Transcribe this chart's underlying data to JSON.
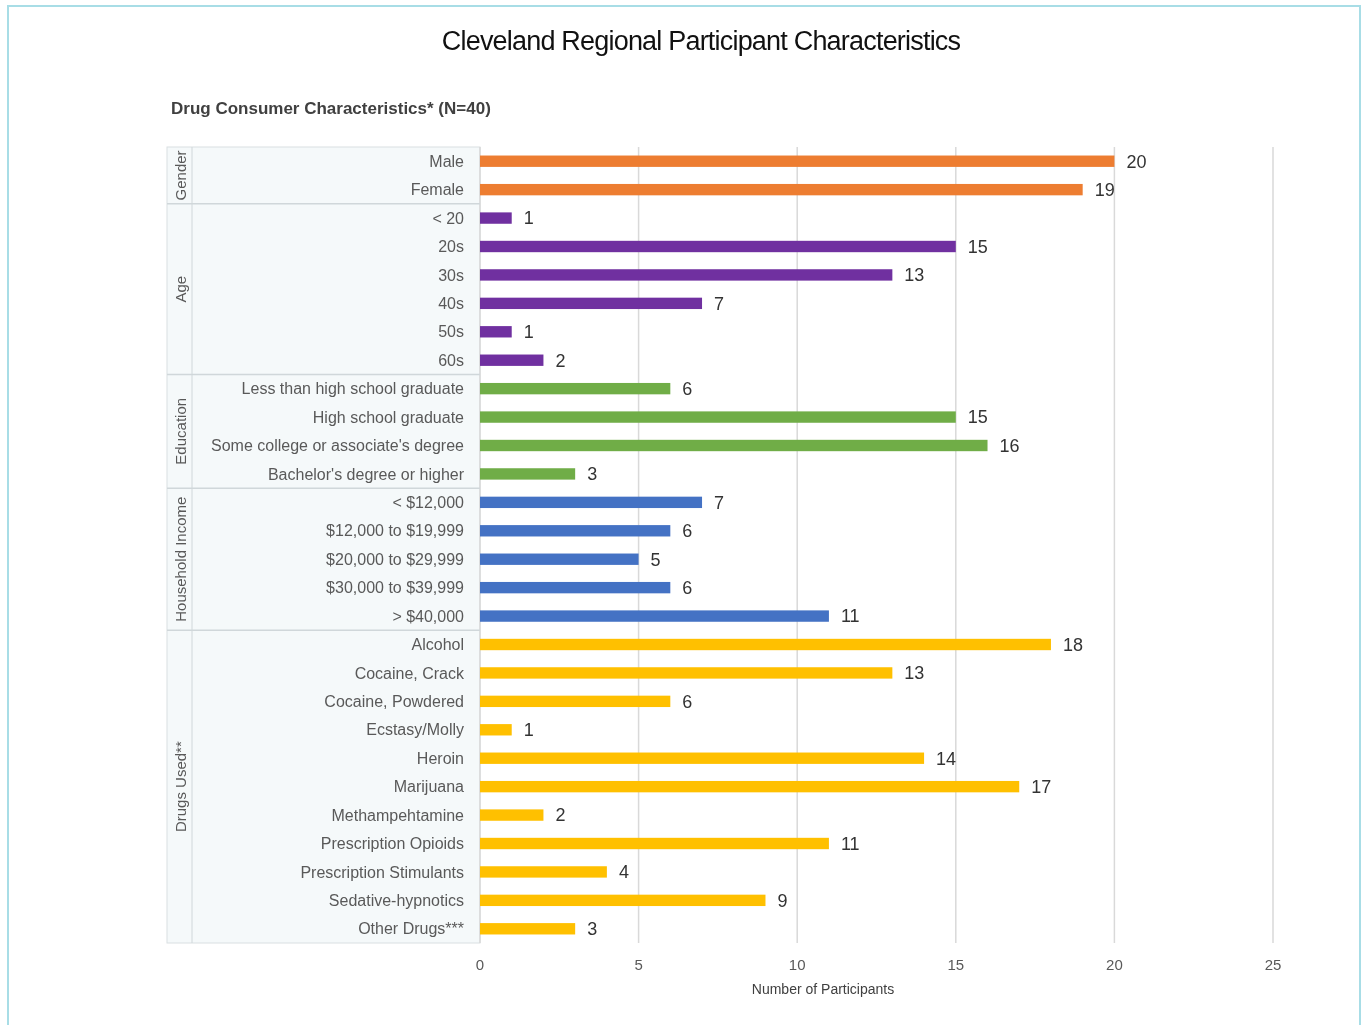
{
  "chart_data": {
    "type": "bar",
    "orientation": "horizontal",
    "title": "Cleveland Regional Participant Characteristics",
    "subtitle": "Drug Consumer Characteristics* (N=40)",
    "xlabel": "Number of Participants",
    "annotations": [
      "Gender",
      "Age",
      "Education",
      "Household Income",
      "Drugs Used**"
    ],
    "categories": [
      "Male",
      "Female",
      "< 20",
      "20s",
      "30s",
      "40s",
      "50s",
      "60s",
      "Less than high school graduate",
      "High school graduate",
      "Some college or associate's degree",
      "Bachelor's degree or higher",
      "< $12,000",
      "$12,000 to $19,999",
      "$20,000 to $29,999",
      "$30,000 to $39,999",
      "> $40,000",
      "Alcohol",
      "Cocaine, Crack",
      "Cocaine, Powdered",
      "Ecstasy/Molly",
      "Heroin",
      "Marijuana",
      "Methampehtamine",
      "Prescription Opioids",
      "Prescription Stimulants",
      "Sedative-hypnotics",
      "Other Drugs***"
    ],
    "series": [
      {
        "color": "#ed7d31",
        "values": [
          20,
          19,
          null,
          null,
          null,
          null,
          null,
          null,
          null,
          null,
          null,
          null,
          null,
          null,
          null,
          null,
          null,
          null,
          null,
          null,
          null,
          null,
          null,
          null,
          null,
          null,
          null,
          null
        ]
      },
      {
        "color": "#7030a0",
        "values": [
          null,
          null,
          1,
          15,
          13,
          7,
          1,
          2,
          null,
          null,
          null,
          null,
          null,
          null,
          null,
          null,
          null,
          null,
          null,
          null,
          null,
          null,
          null,
          null,
          null,
          null,
          null,
          null
        ]
      },
      {
        "color": "#70ad47",
        "values": [
          null,
          null,
          null,
          null,
          null,
          null,
          null,
          null,
          6,
          15,
          16,
          3,
          null,
          null,
          null,
          null,
          null,
          null,
          null,
          null,
          null,
          null,
          null,
          null,
          null,
          null,
          null,
          null
        ]
      },
      {
        "color": "#4472c4",
        "values": [
          null,
          null,
          null,
          null,
          null,
          null,
          null,
          null,
          null,
          null,
          null,
          null,
          7,
          6,
          5,
          6,
          11,
          null,
          null,
          null,
          null,
          null,
          null,
          null,
          null,
          null,
          null,
          null
        ]
      },
      {
        "color": "#ffc000",
        "values": [
          null,
          null,
          null,
          null,
          null,
          null,
          null,
          null,
          null,
          null,
          null,
          null,
          null,
          null,
          null,
          null,
          null,
          18,
          13,
          6,
          1,
          14,
          17,
          2,
          11,
          4,
          9,
          3
        ]
      }
    ],
    "xlim": [
      0,
      25
    ],
    "xticks": [
      0,
      5,
      10,
      15,
      20,
      25
    ],
    "grid": "x",
    "data_labels": true
  }
}
